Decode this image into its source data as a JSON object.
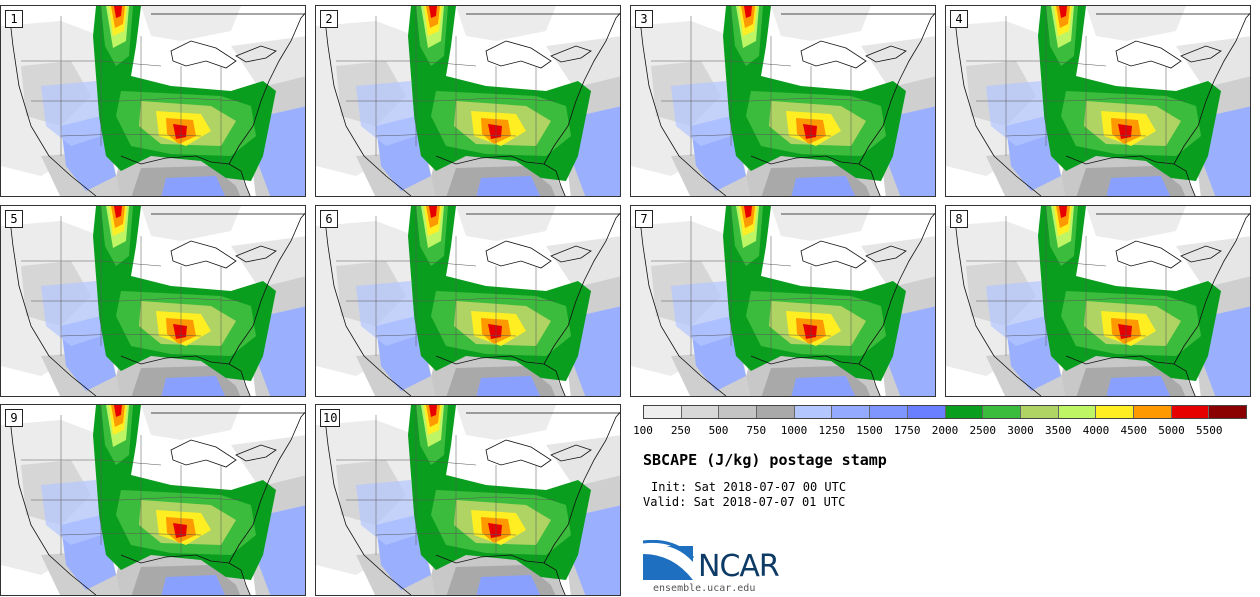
{
  "panels": [
    {
      "label": "1"
    },
    {
      "label": "2"
    },
    {
      "label": "3"
    },
    {
      "label": "4"
    },
    {
      "label": "5"
    },
    {
      "label": "6"
    },
    {
      "label": "7"
    },
    {
      "label": "8"
    },
    {
      "label": "9"
    },
    {
      "label": "10"
    }
  ],
  "colorbar": {
    "ticks": [
      "100",
      "250",
      "500",
      "750",
      "1000",
      "1250",
      "1500",
      "1750",
      "2000",
      "2500",
      "3000",
      "3500",
      "4000",
      "4500",
      "5000",
      "5500"
    ],
    "colors": [
      "#eeeeee",
      "#d8d8d8",
      "#c4c4c4",
      "#a9a9a9",
      "#b3c6ff",
      "#93aaff",
      "#7f96ff",
      "#6a7fff",
      "#0a9e1e",
      "#3cbc3c",
      "#b0d464",
      "#bef564",
      "#ffee22",
      "#ff9900",
      "#e60000",
      "#8b0000"
    ]
  },
  "title": "SBCAPE (J/kg) postage stamp",
  "init": "Init: Sat 2018-07-07 00 UTC",
  "valid": "Valid: Sat 2018-07-07 01 UTC",
  "logo": {
    "name": "NCAR",
    "site": "ensemble.ucar.edu"
  }
}
